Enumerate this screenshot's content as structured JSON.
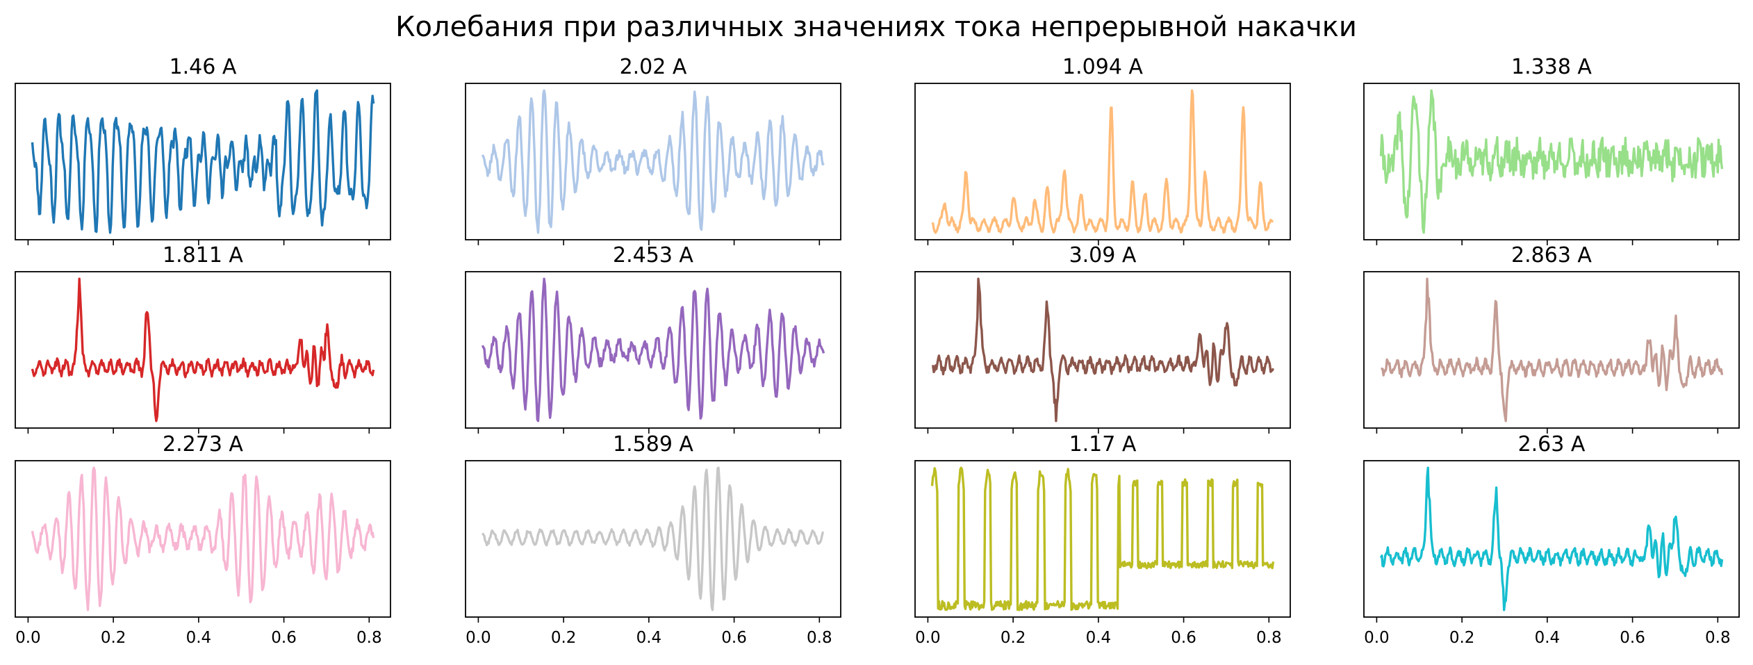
{
  "figure": {
    "title": "Колебания при различных значениях тока непрерывной накачки"
  },
  "chart_data": {
    "type": "line",
    "shared_x_ticks": [
      "0.0",
      "0.2",
      "0.4",
      "0.6",
      "0.8"
    ],
    "x_ticks": [
      0.0,
      0.2,
      0.4,
      0.6,
      0.8
    ],
    "xlim": [
      -0.03,
      0.85
    ],
    "grid": false,
    "panels": [
      {
        "title": "1.46 A",
        "color": "#1f77b4",
        "kind": "periodic",
        "seed": 11
      },
      {
        "title": "2.02 A",
        "color": "#aec7e8",
        "kind": "bursty",
        "seed": 23
      },
      {
        "title": "1.094 A",
        "color": "#ffbb78",
        "kind": "spiky-up",
        "seed": 37
      },
      {
        "title": "1.338 A",
        "color": "#98df8a",
        "kind": "noisy-high",
        "seed": 41
      },
      {
        "title": "1.811 A",
        "color": "#d62728",
        "kind": "spike-flat",
        "seed": 53
      },
      {
        "title": "2.453 A",
        "color": "#9467bd",
        "kind": "bursty",
        "seed": 67
      },
      {
        "title": "3.09 A",
        "color": "#8c564b",
        "kind": "spike-flat",
        "seed": 71
      },
      {
        "title": "2.863 A",
        "color": "#c49c94",
        "kind": "spike-flat",
        "seed": 83
      },
      {
        "title": "2.273 A",
        "color": "#f7b6d2",
        "kind": "bursty",
        "seed": 97
      },
      {
        "title": "1.589 A",
        "color": "#c7c7c7",
        "kind": "late-burst",
        "seed": 101
      },
      {
        "title": "1.17 A",
        "color": "#bcbd22",
        "kind": "square-periodic",
        "seed": 113
      },
      {
        "title": "2.63 A",
        "color": "#17becf",
        "kind": "spike-flat",
        "seed": 127
      }
    ]
  }
}
